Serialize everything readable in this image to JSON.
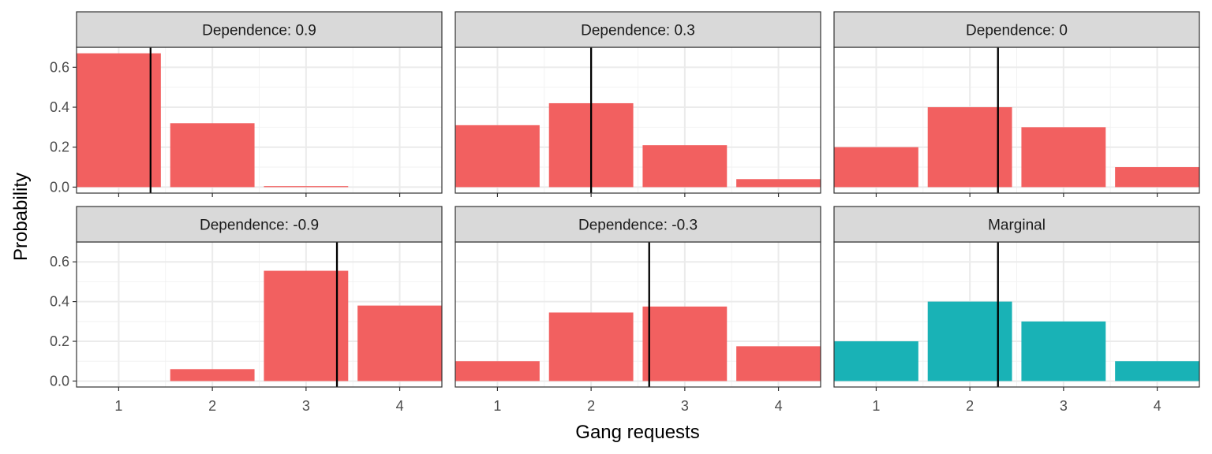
{
  "chart_data": {
    "type": "bar",
    "xlabel": "Gang requests",
    "ylabel": "Probability",
    "categories": [
      "1",
      "2",
      "3",
      "4"
    ],
    "ylim": [
      -0.03,
      0.7
    ],
    "yticks": [
      0.0,
      0.2,
      0.4,
      0.6
    ],
    "ytick_labels": [
      "0.0",
      "0.2",
      "0.4",
      "0.6"
    ],
    "grid": true,
    "colors": {
      "conditional": "#F26060",
      "marginal": "#19B2B6",
      "mean_line": "#000000"
    },
    "panels": [
      {
        "title": "Dependence: 0.9",
        "values": [
          0.67,
          0.32,
          0.005,
          0.0
        ],
        "mean": 1.34,
        "series": "conditional"
      },
      {
        "title": "Dependence: 0.3",
        "values": [
          0.31,
          0.42,
          0.21,
          0.04
        ],
        "mean": 2.0,
        "series": "conditional"
      },
      {
        "title": "Dependence: 0",
        "values": [
          0.2,
          0.4,
          0.3,
          0.1
        ],
        "mean": 2.3,
        "series": "conditional"
      },
      {
        "title": "Dependence: -0.9",
        "values": [
          0.0,
          0.06,
          0.555,
          0.38
        ],
        "mean": 3.33,
        "series": "conditional"
      },
      {
        "title": "Dependence: -0.3",
        "values": [
          0.1,
          0.345,
          0.375,
          0.175
        ],
        "mean": 2.62,
        "series": "conditional"
      },
      {
        "title": "Marginal",
        "values": [
          0.2,
          0.4,
          0.3,
          0.1
        ],
        "mean": 2.3,
        "series": "marginal"
      }
    ]
  }
}
